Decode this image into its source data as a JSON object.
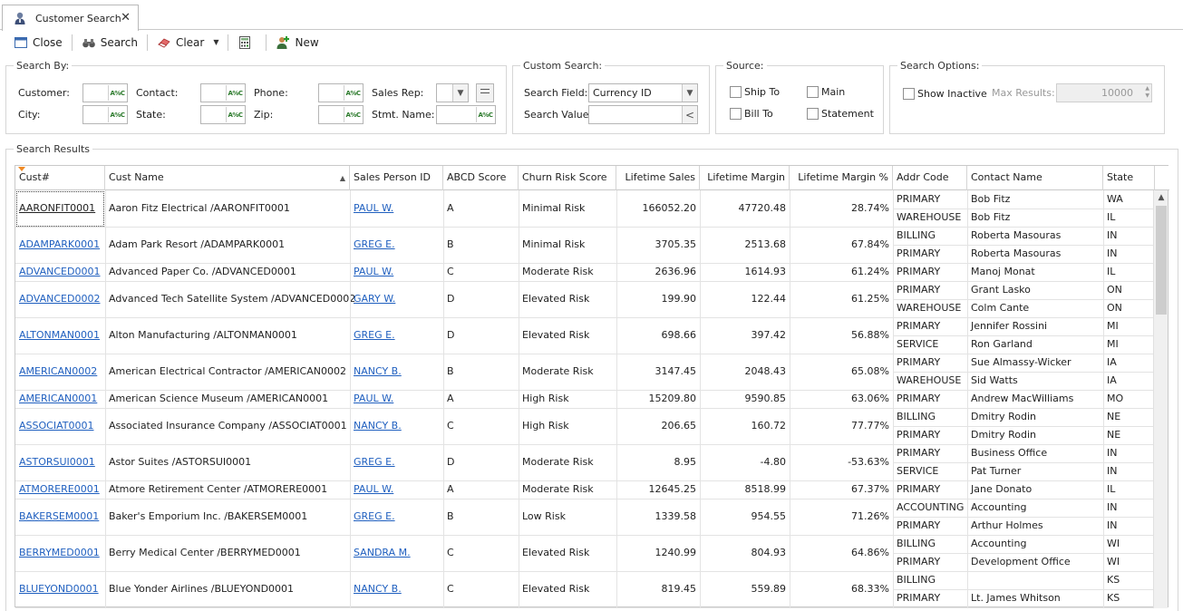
{
  "tab": {
    "label": "Customer Search",
    "close": "✕"
  },
  "toolbar": {
    "close": "Close",
    "search": "Search",
    "clear": "Clear",
    "new": "New"
  },
  "search_by": {
    "title": "Search By:",
    "customer": "Customer:",
    "contact": "Contact:",
    "phone": "Phone:",
    "sales_rep": "Sales Rep:",
    "city": "City:",
    "state": "State:",
    "zip": "Zip:",
    "stmt_name": "Stmt. Name:",
    "abc": "A%C"
  },
  "custom_search": {
    "title": "Custom Search:",
    "field_label": "Search Field:",
    "field_value": "Currency ID",
    "value_label": "Search Value:"
  },
  "source": {
    "title": "Source:",
    "ship_to": "Ship To",
    "main": "Main",
    "bill_to": "Bill To",
    "statement": "Statement"
  },
  "search_options": {
    "title": "Search Options:",
    "show_inactive": "Show Inactive",
    "max_results_label": "Max Results:",
    "max_results": "10000"
  },
  "results": {
    "title": "Search Results",
    "columns": [
      "Cust#",
      "Cust Name",
      "Sales Person ID",
      "ABCD Score",
      "Churn Risk Score",
      "Lifetime Sales",
      "Lifetime Margin",
      "Lifetime Margin %",
      "Addr Code",
      "Contact Name",
      "State"
    ],
    "customers": [
      {
        "id": "AARONFIT0001",
        "name": "Aaron Fitz Electrical  /AARONFIT0001",
        "rep": "PAUL W.",
        "abcd": "A",
        "churn": "Minimal Risk",
        "sales": "166052.20",
        "margin": "47720.48",
        "pct": "28.74%",
        "addrs": [
          [
            "PRIMARY",
            "Bob Fitz",
            "WA"
          ],
          [
            "WAREHOUSE",
            "Bob Fitz",
            "IL"
          ]
        ]
      },
      {
        "id": "ADAMPARK0001",
        "name": "Adam Park Resort  /ADAMPARK0001",
        "rep": "GREG E.",
        "abcd": "B",
        "churn": "Minimal Risk",
        "sales": "3705.35",
        "margin": "2513.68",
        "pct": "67.84%",
        "addrs": [
          [
            "BILLING",
            "Roberta Masouras",
            "IN"
          ],
          [
            "PRIMARY",
            "Roberta Masouras",
            "IN"
          ]
        ]
      },
      {
        "id": "ADVANCED0001",
        "name": "Advanced Paper Co.  /ADVANCED0001",
        "rep": "PAUL W.",
        "abcd": "C",
        "churn": "Moderate Risk",
        "sales": "2636.96",
        "margin": "1614.93",
        "pct": "61.24%",
        "addrs": [
          [
            "PRIMARY",
            "Manoj Monat",
            "IL"
          ]
        ]
      },
      {
        "id": "ADVANCED0002",
        "name": "Advanced Tech Satellite System  /ADVANCED0002",
        "rep": "GARY W.",
        "abcd": "D",
        "churn": "Elevated Risk",
        "sales": "199.90",
        "margin": "122.44",
        "pct": "61.25%",
        "addrs": [
          [
            "PRIMARY",
            "Grant Lasko",
            "ON"
          ],
          [
            "WAREHOUSE",
            "Colm Cante",
            "ON"
          ]
        ]
      },
      {
        "id": "ALTONMAN0001",
        "name": "Alton Manufacturing  /ALTONMAN0001",
        "rep": "GREG E.",
        "abcd": "D",
        "churn": "Elevated Risk",
        "sales": "698.66",
        "margin": "397.42",
        "pct": "56.88%",
        "addrs": [
          [
            "PRIMARY",
            "Jennifer Rossini",
            "MI"
          ],
          [
            "SERVICE",
            "Ron Garland",
            "MI"
          ]
        ]
      },
      {
        "id": "AMERICAN0002",
        "name": "American Electrical Contractor  /AMERICAN0002",
        "rep": "NANCY B.",
        "abcd": "B",
        "churn": "Moderate Risk",
        "sales": "3147.45",
        "margin": "2048.43",
        "pct": "65.08%",
        "addrs": [
          [
            "PRIMARY",
            "Sue Almassy-Wicker",
            "IA"
          ],
          [
            "WAREHOUSE",
            "Sid Watts",
            "IA"
          ]
        ]
      },
      {
        "id": "AMERICAN0001",
        "name": "American Science Museum  /AMERICAN0001",
        "rep": "PAUL W.",
        "abcd": "A",
        "churn": "High Risk",
        "sales": "15209.80",
        "margin": "9590.85",
        "pct": "63.06%",
        "addrs": [
          [
            "PRIMARY",
            "Andrew MacWilliams",
            "MO"
          ]
        ]
      },
      {
        "id": "ASSOCIAT0001",
        "name": "Associated Insurance Company  /ASSOCIAT0001",
        "rep": "NANCY B.",
        "abcd": "C",
        "churn": "High Risk",
        "sales": "206.65",
        "margin": "160.72",
        "pct": "77.77%",
        "addrs": [
          [
            "BILLING",
            "Dmitry Rodin",
            "NE"
          ],
          [
            "PRIMARY",
            "Dmitry Rodin",
            "NE"
          ]
        ]
      },
      {
        "id": "ASTORSUI0001",
        "name": "Astor Suites  /ASTORSUI0001",
        "rep": "GREG E.",
        "abcd": "D",
        "churn": "Moderate Risk",
        "sales": "8.95",
        "margin": "-4.80",
        "pct": "-53.63%",
        "addrs": [
          [
            "PRIMARY",
            "Business Office",
            "IN"
          ],
          [
            "SERVICE",
            "Pat Turner",
            "IN"
          ]
        ]
      },
      {
        "id": "ATMORERE0001",
        "name": "Atmore Retirement Center  /ATMORERE0001",
        "rep": "PAUL W.",
        "abcd": "A",
        "churn": "Moderate Risk",
        "sales": "12645.25",
        "margin": "8518.99",
        "pct": "67.37%",
        "addrs": [
          [
            "PRIMARY",
            "Jane Donato",
            "IL"
          ]
        ]
      },
      {
        "id": "BAKERSEM0001",
        "name": "Baker's Emporium Inc.  /BAKERSEM0001",
        "rep": "GREG E.",
        "abcd": "B",
        "churn": "Low Risk",
        "sales": "1339.58",
        "margin": "954.55",
        "pct": "71.26%",
        "addrs": [
          [
            "ACCOUNTING",
            "Accounting",
            "IN"
          ],
          [
            "PRIMARY",
            "Arthur Holmes",
            "IN"
          ]
        ]
      },
      {
        "id": "BERRYMED0001",
        "name": "Berry Medical Center  /BERRYMED0001",
        "rep": "SANDRA M.",
        "abcd": "C",
        "churn": "Elevated Risk",
        "sales": "1240.99",
        "margin": "804.93",
        "pct": "64.86%",
        "addrs": [
          [
            "BILLING",
            "Accounting",
            "WI"
          ],
          [
            "PRIMARY",
            "Development Office",
            "WI"
          ]
        ]
      },
      {
        "id": "BLUEYOND0001",
        "name": "Blue Yonder Airlines  /BLUEYOND0001",
        "rep": "NANCY B.",
        "abcd": "C",
        "churn": "Elevated Risk",
        "sales": "819.45",
        "margin": "559.89",
        "pct": "68.33%",
        "addrs": [
          [
            "BILLING",
            "",
            "KS"
          ],
          [
            "PRIMARY",
            "Lt. James Whitson",
            "KS"
          ]
        ]
      }
    ]
  },
  "colors": {
    "link": "#1f5fbf",
    "sort_marker": "#f08a24",
    "border": "#c9c9c9"
  },
  "icons": [
    "customer-search-icon",
    "close-window-icon",
    "binoculars-icon",
    "eraser-icon",
    "calculator-icon",
    "new-user-icon"
  ]
}
